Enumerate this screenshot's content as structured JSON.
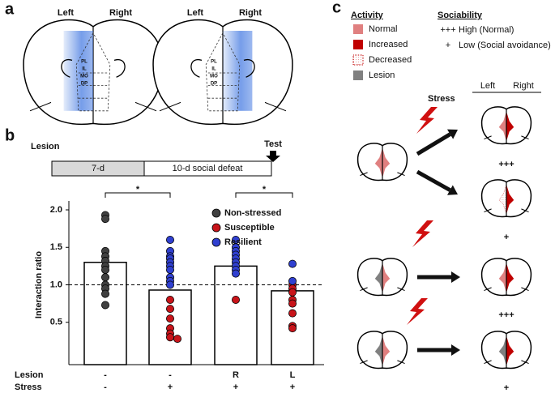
{
  "panel_labels": [
    "a",
    "b",
    "c"
  ],
  "panel_a": {
    "brains": [
      {
        "left": "Left",
        "right": "Right",
        "regions": [
          "PL",
          "IL",
          "MO",
          "DP"
        ]
      },
      {
        "left": "Left",
        "right": "Right",
        "regions": [
          "PL",
          "IL",
          "MO",
          "DP"
        ]
      }
    ]
  },
  "timeline": {
    "start": "Lesion",
    "end": "Test",
    "phases": [
      "7-d",
      "10-d social defeat"
    ]
  },
  "chart_data": {
    "type": "bar",
    "y_label": "Interaction ratio",
    "bar_values": [
      1.3,
      0.93,
      1.25,
      0.92
    ],
    "row_labels": [
      {
        "name": "Lesion",
        "labels": [
          "-",
          "-",
          "R",
          "L"
        ]
      },
      {
        "name": "Stress",
        "labels": [
          "-",
          "+",
          "+",
          "+"
        ]
      }
    ],
    "ylim": [
      0,
      2.0
    ],
    "yticks": [
      0.5,
      {
        "value": 1,
        "label": "1.0"
      },
      1.5,
      {
        "value": 2,
        "label": "2.0"
      }
    ],
    "reference_line": 1,
    "significance": [
      {
        "groups": [
          0,
          1
        ],
        "label": "*"
      },
      {
        "groups": [
          2,
          3
        ],
        "label": "*"
      }
    ],
    "legend": "top-right",
    "series": [
      {
        "name": "Non-stressed",
        "color": "#404040",
        "x": [
          0,
          0,
          0,
          0,
          0,
          0,
          0,
          0,
          0,
          0,
          0,
          0
        ],
        "values": [
          1.93,
          1.88,
          1.45,
          1.38,
          1.32,
          1.25,
          1.2,
          1.1,
          1.0,
          0.95,
          0.88,
          0.73
        ]
      },
      {
        "name": "Susceptible",
        "color": "#c8141a",
        "x": [
          1,
          1,
          1,
          1,
          1,
          1,
          1,
          2,
          3,
          3,
          3,
          3,
          3,
          3,
          3,
          3
        ],
        "values": [
          0.8,
          0.68,
          0.55,
          0.42,
          0.35,
          0.3,
          0.28,
          0.8,
          1.0,
          0.95,
          0.9,
          0.8,
          0.75,
          0.62,
          0.45,
          0.42
        ]
      },
      {
        "name": "Resilient",
        "color": "#3040d0",
        "x": [
          1,
          1,
          1,
          1,
          1,
          1,
          1,
          1,
          1,
          1,
          2,
          2,
          2,
          2,
          2,
          2,
          2,
          2,
          2,
          3,
          3
        ],
        "values": [
          1.6,
          1.45,
          1.38,
          1.35,
          1.3,
          1.25,
          1.2,
          1.1,
          1.05,
          1.0,
          1.6,
          1.5,
          1.45,
          1.4,
          1.35,
          1.3,
          1.25,
          1.2,
          1.15,
          1.28,
          1.05
        ]
      }
    ]
  },
  "panel_c": {
    "activity_title": "Activity",
    "activity": [
      "Normal",
      "Increased",
      "Decreased",
      "Lesion"
    ],
    "sociability_title": "Sociability",
    "sociability": [
      {
        "symbol": "+++",
        "text": "High (Normal)"
      },
      {
        "symbol": "+",
        "text": "Low (Social avoidance)"
      }
    ],
    "stress": "Stress",
    "left": "Left",
    "right": "Right",
    "outcomes": [
      "+++",
      "+",
      "+++",
      "+"
    ]
  }
}
